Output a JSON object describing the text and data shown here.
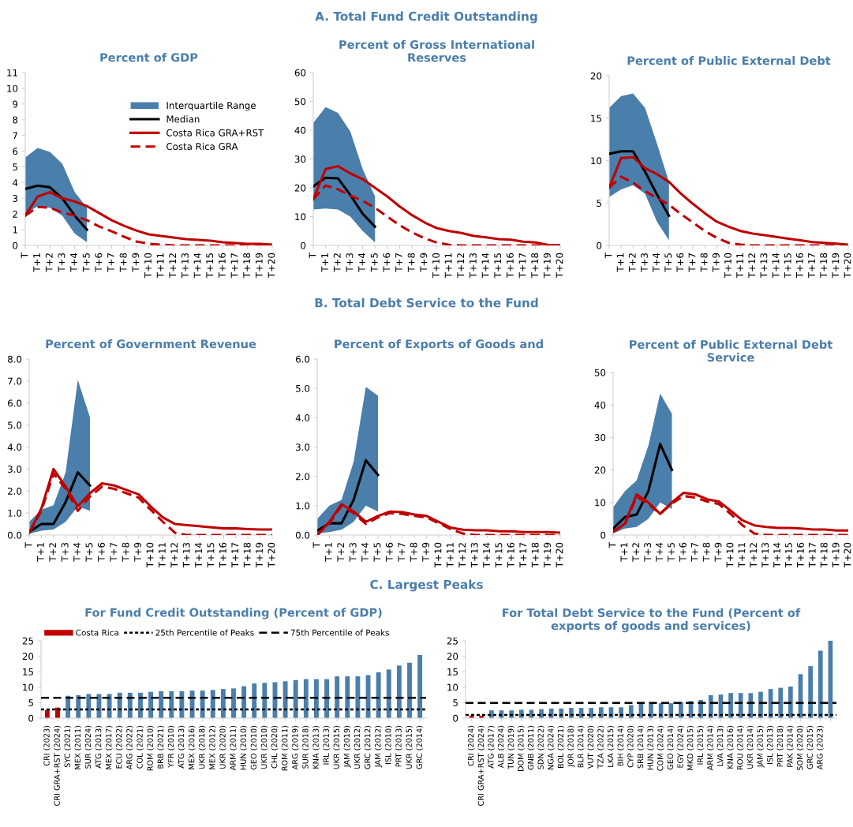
{
  "chart_data": [
    {
      "type": "line",
      "title": "Percent of GDP",
      "annotations": [
        "A. Total Fund Credit Outstanding"
      ],
      "legend": "top right",
      "categories": [
        "T",
        "T+1",
        "T+2",
        "T+3",
        "T+4",
        "T+5",
        "T+6",
        "T+7",
        "T+8",
        "T+9",
        "T+10",
        "T+11",
        "T+12",
        "T+13",
        "T+14",
        "T+15",
        "T+16",
        "T+17",
        "T+18",
        "T+19",
        "T+20"
      ],
      "ylim": [
        0,
        11
      ],
      "yticks": [
        0,
        1,
        2,
        3,
        4,
        5,
        6,
        7,
        8,
        9,
        10,
        11
      ],
      "series": [
        {
          "name": "Interquartile Range",
          "type": "area",
          "color": "#4a7eab",
          "values": [
            null,
            null,
            null,
            null,
            null,
            null,
            null,
            null,
            null,
            null,
            null,
            null,
            null,
            null,
            null,
            null,
            null,
            null,
            null,
            null,
            null
          ],
          "lower": [
            2.0,
            2.5,
            2.4,
            1.9,
            0.75,
            0.2,
            null,
            null,
            null,
            null,
            null,
            null,
            null,
            null,
            null,
            null,
            null,
            null,
            null,
            null,
            null
          ],
          "upper": [
            5.6,
            6.2,
            5.95,
            5.2,
            3.4,
            2.4,
            null,
            null,
            null,
            null,
            null,
            null,
            null,
            null,
            null,
            null,
            null,
            null,
            null,
            null,
            null
          ]
        },
        {
          "name": "Median",
          "type": "line",
          "color": "#000000",
          "values": [
            3.6,
            3.8,
            3.7,
            3.0,
            1.9,
            1.0,
            null,
            null,
            null,
            null,
            null,
            null,
            null,
            null,
            null,
            null,
            null,
            null,
            null,
            null,
            null
          ]
        },
        {
          "name": "Costa Rica GRA+RST",
          "type": "line",
          "color": "#c00000",
          "values": [
            1.9,
            3.1,
            3.4,
            3.0,
            2.8,
            2.5,
            2.05,
            1.6,
            1.25,
            0.95,
            0.7,
            0.6,
            0.5,
            0.4,
            0.35,
            0.3,
            0.2,
            0.15,
            0.1,
            0.1,
            0.05
          ]
        },
        {
          "name": "Costa Rica GRA",
          "type": "line",
          "line_style": "dashed",
          "color": "#c00000",
          "values": [
            1.9,
            2.45,
            2.4,
            2.1,
            1.9,
            1.6,
            1.2,
            0.9,
            0.55,
            0.25,
            0.1,
            0.05,
            0,
            0,
            0,
            0,
            0,
            0,
            0.05,
            0.05,
            0
          ]
        }
      ]
    },
    {
      "type": "line",
      "title": "Percent of Gross International Reserves",
      "categories": [
        "T",
        "T+1",
        "T+2",
        "T+3",
        "T+4",
        "T+5",
        "T+6",
        "T+7",
        "T+8",
        "T+9",
        "T+10",
        "T+11",
        "T+12",
        "T+13",
        "T+14",
        "T+15",
        "T+16",
        "T+17",
        "T+18",
        "T+19",
        "T+20"
      ],
      "ylim": [
        0,
        60
      ],
      "yticks": [
        0,
        10,
        20,
        30,
        40,
        50,
        60
      ],
      "series": [
        {
          "type": "area",
          "color": "#4a7eab",
          "values": [
            null,
            null,
            null,
            null,
            null,
            null,
            null,
            null,
            null,
            null,
            null,
            null,
            null,
            null,
            null,
            null,
            null,
            null,
            null,
            null,
            null
          ],
          "lower": [
            12.5,
            12.8,
            12.5,
            10,
            5,
            1,
            null,
            null,
            null,
            null,
            null,
            null,
            null,
            null,
            null,
            null,
            null,
            null,
            null,
            null,
            null
          ],
          "upper": [
            42.5,
            48,
            46,
            39.5,
            26.5,
            17,
            null,
            null,
            null,
            null,
            null,
            null,
            null,
            null,
            null,
            null,
            null,
            null,
            null,
            null,
            null
          ]
        },
        {
          "type": "line",
          "color": "#000000",
          "values": [
            20.5,
            23.5,
            23.3,
            17.5,
            11,
            6.5,
            null,
            null,
            null,
            null,
            null,
            null,
            null,
            null,
            null,
            null,
            null,
            null,
            null,
            null,
            null
          ]
        },
        {
          "type": "line",
          "color": "#c00000",
          "values": [
            16,
            26.5,
            27.5,
            25,
            23,
            20,
            17,
            13.5,
            10.5,
            8,
            6,
            5,
            4.3,
            3.3,
            2.8,
            2.2,
            2,
            1.3,
            1,
            0.2,
            0.1
          ]
        },
        {
          "type": "line",
          "line_style": "dashed",
          "color": "#c00000",
          "values": [
            16,
            20.8,
            19.5,
            17.3,
            15.5,
            13,
            10,
            7,
            4.5,
            2.5,
            1,
            0.2,
            0,
            0,
            0,
            0,
            0,
            0,
            0,
            0,
            0
          ]
        }
      ]
    },
    {
      "type": "line",
      "title": "Percent of Public External Debt",
      "categories": [
        "T",
        "T+1",
        "T+2",
        "T+3",
        "T+4",
        "T+5",
        "T+6",
        "T+7",
        "T+8",
        "T+9",
        "T+10",
        "T+11",
        "T+12",
        "T+13",
        "T+14",
        "T+15",
        "T+16",
        "T+17",
        "T+18",
        "T+19",
        "T+20"
      ],
      "ylim": [
        0,
        20
      ],
      "yticks": [
        0,
        5,
        10,
        15,
        20
      ],
      "series": [
        {
          "type": "area",
          "color": "#4a7eab",
          "values": [
            null,
            null,
            null,
            null,
            null,
            null,
            null,
            null,
            null,
            null,
            null,
            null,
            null,
            null,
            null,
            null,
            null,
            null,
            null,
            null,
            null
          ],
          "lower": [
            5.7,
            6.6,
            7.1,
            6.1,
            2.8,
            0.6,
            null,
            null,
            null,
            null,
            null,
            null,
            null,
            null,
            null,
            null,
            null,
            null,
            null,
            null,
            null
          ],
          "upper": [
            16.2,
            17.6,
            17.9,
            16.2,
            12,
            7.5,
            null,
            null,
            null,
            null,
            null,
            null,
            null,
            null,
            null,
            null,
            null,
            null,
            null,
            null,
            null
          ]
        },
        {
          "type": "line",
          "color": "#000000",
          "values": [
            10.8,
            11.1,
            11.1,
            8.7,
            6.0,
            3.5,
            null,
            null,
            null,
            null,
            null,
            null,
            null,
            null,
            null,
            null,
            null,
            null,
            null,
            null,
            null
          ]
        },
        {
          "type": "line",
          "color": "#c00000",
          "values": [
            6.8,
            10.3,
            10.4,
            9.1,
            8.4,
            7.5,
            6.1,
            4.9,
            3.8,
            2.8,
            2.2,
            1.7,
            1.4,
            1.2,
            1.0,
            0.8,
            0.6,
            0.4,
            0.3,
            0.2,
            0.1
          ]
        },
        {
          "type": "line",
          "line_style": "dashed",
          "color": "#c00000",
          "values": [
            6.8,
            8.1,
            7.4,
            6.4,
            5.6,
            4.8,
            3.7,
            2.7,
            1.7,
            0.9,
            0.3,
            0.1,
            0,
            0,
            0,
            0,
            0,
            0,
            0,
            0,
            0
          ]
        }
      ]
    },
    {
      "type": "line",
      "title": "Percent of Government Revenue",
      "annotations": [
        "B. Total Debt Service to the Fund"
      ],
      "categories": [
        "T",
        "T+1",
        "T+2",
        "T+3",
        "T+4",
        "T+5",
        "T+6",
        "T+7",
        "T+8",
        "T+9",
        "T+10",
        "T+11",
        "T+12",
        "T+13",
        "T+14",
        "T+15",
        "T+16",
        "T+17",
        "T+18",
        "T+19",
        "T+20"
      ],
      "ylim": [
        0,
        8
      ],
      "yticks": [
        {
          "value": 0,
          "label": "0.0"
        },
        {
          "value": 1,
          "label": "1.0"
        },
        {
          "value": 2,
          "label": "2.0"
        },
        {
          "value": 3,
          "label": "3.0"
        },
        {
          "value": 4,
          "label": "4.0"
        },
        {
          "value": 5,
          "label": "5.0"
        },
        {
          "value": 6,
          "label": "6.0"
        },
        {
          "value": 7,
          "label": "7.0"
        },
        {
          "value": 8,
          "label": "8.0"
        }
      ],
      "series": [
        {
          "type": "area",
          "color": "#4a7eab",
          "values": [
            null,
            null,
            null,
            null,
            null,
            null,
            null,
            null,
            null,
            null,
            null,
            null,
            null,
            null,
            null,
            null,
            null,
            null,
            null,
            null,
            null
          ],
          "lower": [
            0.05,
            0.2,
            0.25,
            0.6,
            1.3,
            1.1,
            null,
            null,
            null,
            null,
            null,
            null,
            null,
            null,
            null,
            null,
            null,
            null,
            null,
            null,
            null
          ],
          "upper": [
            0.6,
            1.15,
            1.35,
            2.85,
            7.05,
            5.35,
            null,
            null,
            null,
            null,
            null,
            null,
            null,
            null,
            null,
            null,
            null,
            null,
            null,
            null,
            null
          ]
        },
        {
          "type": "line",
          "color": "#000000",
          "values": [
            0.15,
            0.5,
            0.5,
            1.5,
            2.85,
            2.25,
            null,
            null,
            null,
            null,
            null,
            null,
            null,
            null,
            null,
            null,
            null,
            null,
            null,
            null,
            null
          ]
        },
        {
          "type": "line",
          "color": "#c00000",
          "values": [
            0.1,
            1.2,
            3.0,
            2.2,
            1.3,
            1.9,
            2.35,
            2.25,
            2.05,
            1.85,
            1.3,
            0.8,
            0.5,
            0.45,
            0.4,
            0.35,
            0.3,
            0.3,
            0.27,
            0.25,
            0.25
          ]
        },
        {
          "type": "line",
          "line_style": "dashed",
          "color": "#c00000",
          "values": [
            0.1,
            1.1,
            2.8,
            2.1,
            1.1,
            1.75,
            2.2,
            2.1,
            1.9,
            1.7,
            1.15,
            0.6,
            0.1,
            0,
            0,
            0,
            0,
            0,
            0,
            0,
            0
          ]
        }
      ]
    },
    {
      "type": "line",
      "title": "Percent of Exports of Goods and",
      "categories": [
        "T",
        "T+1",
        "T+2",
        "T+3",
        "T+4",
        "T+5",
        "T+6",
        "T+7",
        "T+8",
        "T+9",
        "T+10",
        "T+11",
        "T+12",
        "T+13",
        "T+14",
        "T+15",
        "T+16",
        "T+17",
        "T+18",
        "T+19",
        "T+20"
      ],
      "ylim": [
        0,
        6
      ],
      "yticks": [
        {
          "value": 0,
          "label": "0.0"
        },
        {
          "value": 1,
          "label": "1.0"
        },
        {
          "value": 2,
          "label": "2.0"
        },
        {
          "value": 3,
          "label": "3.0"
        },
        {
          "value": 4,
          "label": "4.0"
        },
        {
          "value": 5,
          "label": "5.0"
        },
        {
          "value": 6,
          "label": "6.0"
        }
      ],
      "series": [
        {
          "type": "area",
          "color": "#4a7eab",
          "values": [
            null,
            null,
            null,
            null,
            null,
            null,
            null,
            null,
            null,
            null,
            null,
            null,
            null,
            null,
            null,
            null,
            null,
            null,
            null,
            null,
            null
          ],
          "lower": [
            0.05,
            0.1,
            0.18,
            0.45,
            1.0,
            0.8,
            null,
            null,
            null,
            null,
            null,
            null,
            null,
            null,
            null,
            null,
            null,
            null,
            null,
            null,
            null
          ],
          "upper": [
            0.55,
            1.0,
            1.2,
            2.5,
            5.05,
            4.75,
            null,
            null,
            null,
            null,
            null,
            null,
            null,
            null,
            null,
            null,
            null,
            null,
            null,
            null,
            null
          ]
        },
        {
          "type": "line",
          "color": "#000000",
          "values": [
            0.15,
            0.4,
            0.4,
            1.2,
            2.55,
            2.05,
            null,
            null,
            null,
            null,
            null,
            null,
            null,
            null,
            null,
            null,
            null,
            null,
            null,
            null,
            null
          ]
        },
        {
          "type": "line",
          "color": "#c00000",
          "values": [
            0,
            0.45,
            1.05,
            0.8,
            0.45,
            0.65,
            0.8,
            0.78,
            0.7,
            0.65,
            0.45,
            0.25,
            0.18,
            0.16,
            0.16,
            0.13,
            0.13,
            0.1,
            0.1,
            0.1,
            0.08
          ]
        },
        {
          "type": "line",
          "line_style": "dashed",
          "color": "#c00000",
          "values": [
            0,
            0.4,
            1.0,
            0.75,
            0.38,
            0.6,
            0.75,
            0.72,
            0.65,
            0.6,
            0.4,
            0.2,
            0.05,
            0,
            0,
            0,
            0,
            0,
            0,
            0,
            0
          ]
        }
      ]
    },
    {
      "type": "line",
      "title": "Percent of Public External Debt Service",
      "categories": [
        "T",
        "T+1",
        "T+2",
        "T+3",
        "T+4",
        "T+5",
        "T+6",
        "T+7",
        "T+8",
        "T+9",
        "T+10",
        "T+11",
        "T+12",
        "T+13",
        "T+14",
        "T+15",
        "T+16",
        "T+17",
        "T+18",
        "T+19",
        "T+20"
      ],
      "ylim": [
        0,
        50
      ],
      "yticks": [
        0,
        10,
        20,
        30,
        40,
        50
      ],
      "series": [
        {
          "type": "area",
          "color": "#4a7eab",
          "values": [
            null,
            null,
            null,
            null,
            null,
            null,
            null,
            null,
            null,
            null,
            null,
            null,
            null,
            null,
            null,
            null,
            null,
            null,
            null,
            null,
            null
          ],
          "lower": [
            0.5,
            2,
            2.5,
            5,
            10,
            8,
            null,
            null,
            null,
            null,
            null,
            null,
            null,
            null,
            null,
            null,
            null,
            null,
            null,
            null,
            null
          ],
          "upper": [
            8.5,
            13.5,
            16.8,
            27.5,
            43.5,
            37.3,
            null,
            null,
            null,
            null,
            null,
            null,
            null,
            null,
            null,
            null,
            null,
            null,
            null,
            null,
            null
          ]
        },
        {
          "type": "line",
          "color": "#000000",
          "values": [
            2.0,
            5.5,
            6.3,
            13.5,
            28,
            20,
            null,
            null,
            null,
            null,
            null,
            null,
            null,
            null,
            null,
            null,
            null,
            null,
            null,
            null,
            null
          ]
        },
        {
          "type": "line",
          "color": "#c00000",
          "values": [
            1.0,
            3.5,
            12.5,
            10,
            6.5,
            10,
            13,
            12.5,
            11,
            10.3,
            7.5,
            4.5,
            3,
            2.5,
            2.2,
            2.2,
            2,
            1.7,
            1.7,
            1.4,
            1.4
          ]
        },
        {
          "type": "line",
          "line_style": "dashed",
          "color": "#c00000",
          "values": [
            1.0,
            3.3,
            11.8,
            9.5,
            6.5,
            9.7,
            12,
            11.5,
            10.3,
            9.5,
            6.5,
            3,
            0.5,
            0,
            0,
            0,
            0,
            0,
            0,
            0,
            0
          ]
        }
      ]
    },
    {
      "type": "bar",
      "title": "For Fund Credit Outstanding (Percent of GDP)",
      "annotations": [
        "C. Largest Peaks"
      ],
      "legend": "top left",
      "categories": [
        "CRI (2023)",
        "CRI GRA+RST (2024)",
        "SYC (2021)",
        "MEX (2011)",
        "SUR (2024)",
        "ATG (2013)",
        "MEX (2017)",
        "ECU (2022)",
        "ARG (2022)",
        "COL (2021)",
        "ROM (2010)",
        "BRB (2021)",
        "YFR (2010)",
        "ATG (2013)",
        "MEX (2016)",
        "UKR (2018)",
        "MEX (2012)",
        "UKR (2020)",
        "ARM (2011)",
        "HUN (2010)",
        "GEO (2010)",
        "UKR (2010)",
        "CHL (2020)",
        "ROM (2011)",
        "ARG (2019)",
        "SUR (2018)",
        "KNA (2013)",
        "IRL (2013)",
        "UKR (2015)",
        "JAM (2019)",
        "UKR (2012)",
        "GRC (2012)",
        "JAM (2012)",
        "ISL (2010)",
        "PRT (2013)",
        "UKR (2015)",
        "GRC (2014)"
      ],
      "ylim": [
        0,
        25
      ],
      "yticks": [
        0,
        5,
        10,
        15,
        20,
        25
      ],
      "series": [
        {
          "name": "Costa Rica",
          "color": "#c00000",
          "values": [
            2.6,
            3.4,
            null,
            null,
            null,
            null,
            null,
            null,
            null,
            null,
            null,
            null,
            null,
            null,
            null,
            null,
            null,
            null,
            null,
            null,
            null,
            null,
            null,
            null,
            null,
            null,
            null,
            null,
            null,
            null,
            null,
            null,
            null,
            null,
            null,
            null,
            null
          ]
        },
        {
          "color": "#4a7eab",
          "values": [
            null,
            null,
            7.2,
            7.4,
            7.8,
            7.8,
            7.8,
            8.2,
            8.2,
            8.2,
            8.5,
            8.7,
            8.7,
            8.7,
            8.9,
            8.9,
            9.1,
            9.4,
            9.6,
            10.3,
            11.2,
            11.4,
            11.6,
            11.9,
            12.3,
            12.6,
            12.6,
            12.6,
            13.5,
            13.5,
            13.5,
            13.9,
            14.8,
            15.7,
            17.0,
            17.9,
            20.4
          ]
        }
      ],
      "ref_lines": [
        {
          "axis": "y",
          "value": 2.8,
          "label": "25th Percentile of Peaks",
          "color": "#000000",
          "line_style": "dotted"
        },
        {
          "axis": "y",
          "value": 6.6,
          "label": "75th Percentile of Peaks",
          "color": "#000000",
          "line_style": "dashed"
        }
      ]
    },
    {
      "type": "bar",
      "title": "For Total Debt Service to the Fund (Percent of exports of goods and services)",
      "categories": [
        "CRI (2024)",
        "CRI GRA+RST (2024)",
        "ATG (2017)",
        "ALB (2024)",
        "TUN (2019)",
        "DOM (2015)",
        "GNB (2011)",
        "SDN (2022)",
        "NGA (2024)",
        "BOL (2021)",
        "JOR (2018)",
        "BLR (2014)",
        "VUT (2020)",
        "TZA (2022)",
        "LKA (2015)",
        "BIH (2014)",
        "CYP (2020)",
        "SRB (2014)",
        "HUN (2013)",
        "COM (2024)",
        "GEO (2014)",
        "EGY (2024)",
        "MKD (2015)",
        "IRL (2015)",
        "ARM (2014)",
        "LVA (2013)",
        "KNA (2016)",
        "ROU (2014)",
        "UKR (2014)",
        "JAM (2015)",
        "ISL (2013)",
        "PRT (2018)",
        "PAK (2014)",
        "SOM (2020)",
        "GRC (2015)",
        "ARG (2023)",
        null
      ],
      "ylim": [
        0,
        25
      ],
      "yticks": [
        0,
        5,
        10,
        15,
        20,
        25
      ],
      "series": [
        {
          "color": "#c00000",
          "values": [
            0.8,
            0.8,
            null,
            null,
            null,
            null,
            null,
            null,
            null,
            null,
            null,
            null,
            null,
            null,
            null,
            null,
            null,
            null,
            null,
            null,
            null,
            null,
            null,
            null,
            null,
            null,
            null,
            null,
            null,
            null,
            null,
            null,
            null,
            null,
            null,
            null,
            null
          ]
        },
        {
          "color": "#4a7eab",
          "values": [
            null,
            null,
            2.5,
            2.5,
            2.5,
            2.7,
            2.7,
            2.9,
            3.1,
            3.1,
            3.3,
            3.3,
            3.3,
            3.5,
            3.5,
            3.5,
            4.2,
            4.6,
            4.6,
            4.8,
            4.8,
            5.2,
            5.5,
            5.9,
            7.4,
            7.6,
            8.1,
            8.1,
            8.1,
            8.5,
            9.4,
            9.8,
            10.2,
            14.2,
            16.8,
            21.8,
            25
          ]
        }
      ],
      "ref_lines": [
        {
          "axis": "y",
          "value": 1.0,
          "color": "#000000",
          "line_style": "dotted"
        },
        {
          "axis": "y",
          "value": 4.9,
          "color": "#000000",
          "line_style": "dashed"
        }
      ]
    }
  ]
}
